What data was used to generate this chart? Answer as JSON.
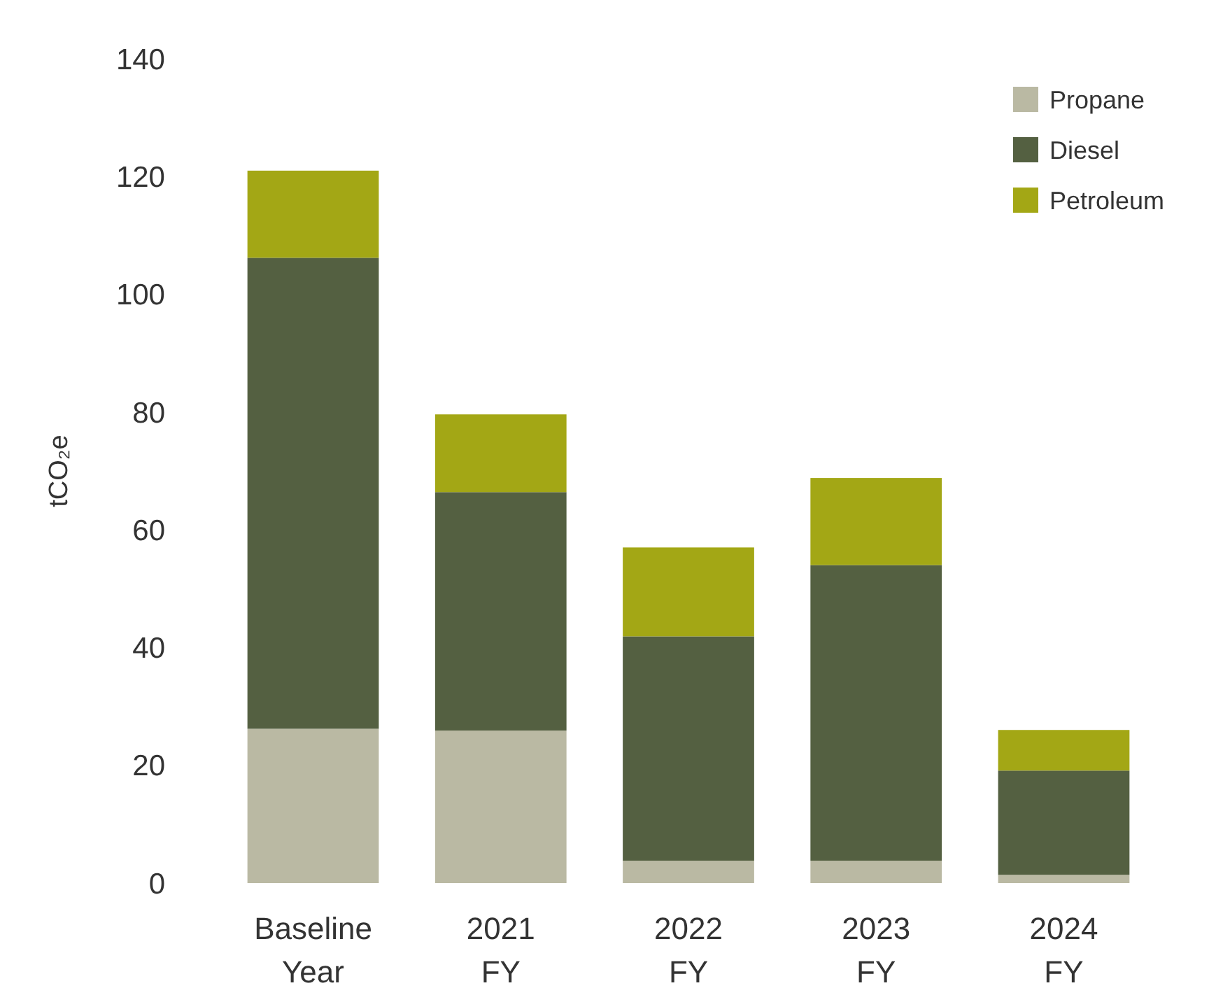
{
  "chart_data": {
    "type": "bar",
    "stacked": true,
    "ylabel": "tCO₂e",
    "categories": [
      "Baseline Year",
      "2021 FY",
      "2022 FY",
      "2023 FY",
      "2024 FY"
    ],
    "series": [
      {
        "name": "Propane",
        "color": "#bab9a3",
        "values": [
          26.2,
          25.9,
          3.8,
          3.8,
          1.4
        ]
      },
      {
        "name": "Diesel",
        "color": "#546041",
        "values": [
          80,
          40.5,
          38.1,
          50.2,
          17.7
        ]
      },
      {
        "name": "Petroleum",
        "color": "#a3a715",
        "values": [
          14.8,
          13.2,
          15.1,
          14.8,
          6.9
        ]
      }
    ],
    "ylim": [
      0,
      140
    ],
    "yticks": [
      0,
      20,
      40,
      60,
      80,
      100,
      120,
      140
    ],
    "legend": "top right",
    "grid": false
  }
}
